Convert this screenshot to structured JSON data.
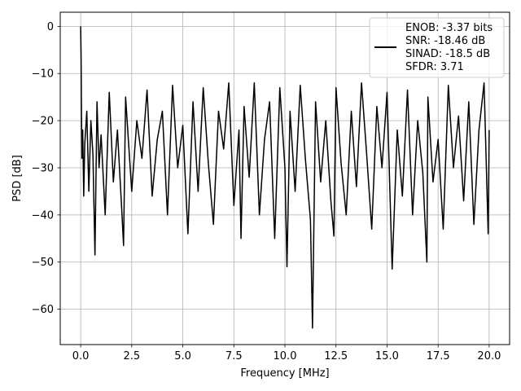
{
  "chart_data": {
    "type": "line",
    "title": "",
    "xlabel": "Frequency [MHz]",
    "ylabel": "PSD [dB]",
    "xlim": [
      -1.0,
      21.0
    ],
    "ylim": [
      -67.5,
      3.0
    ],
    "x_ticks": [
      0.0,
      2.5,
      5.0,
      7.5,
      10.0,
      12.5,
      15.0,
      17.5,
      20.0
    ],
    "x_tick_labels": [
      "0.0",
      "2.5",
      "5.0",
      "7.5",
      "10.0",
      "12.5",
      "15.0",
      "17.5",
      "20.0"
    ],
    "y_ticks": [
      0,
      -10,
      -20,
      -30,
      -40,
      -50,
      -60
    ],
    "y_tick_labels": [
      "0",
      "−10",
      "−20",
      "−30",
      "−40",
      "−50",
      "−60"
    ],
    "grid": true,
    "legend_position": "top-right",
    "series": [
      {
        "color": "#000000",
        "x": [
          0.0,
          0.02,
          0.04,
          0.06,
          0.1,
          0.15,
          0.2,
          0.3,
          0.4,
          0.5,
          0.6,
          0.7,
          0.8,
          0.9,
          1.0,
          1.2,
          1.4,
          1.6,
          1.8,
          2.0,
          2.1,
          2.2,
          2.5,
          2.75,
          3.0,
          3.25,
          3.5,
          3.75,
          4.0,
          4.25,
          4.5,
          4.75,
          5.0,
          5.25,
          5.5,
          5.75,
          6.0,
          6.25,
          6.5,
          6.75,
          7.0,
          7.25,
          7.5,
          7.75,
          7.85,
          8.0,
          8.25,
          8.5,
          8.75,
          9.0,
          9.25,
          9.5,
          9.75,
          10.0,
          10.1,
          10.25,
          10.5,
          10.75,
          11.0,
          11.25,
          11.35,
          11.5,
          11.75,
          12.0,
          12.25,
          12.4,
          12.5,
          12.75,
          13.0,
          13.25,
          13.5,
          13.75,
          14.0,
          14.25,
          14.5,
          14.75,
          15.0,
          15.25,
          15.5,
          15.75,
          16.0,
          16.25,
          16.5,
          16.75,
          16.95,
          17.0,
          17.25,
          17.5,
          17.75,
          18.0,
          18.25,
          18.5,
          18.75,
          19.0,
          19.25,
          19.5,
          19.75,
          19.95,
          20.0
        ],
        "y": [
          0.0,
          -6.0,
          -18.0,
          -28.0,
          -22.0,
          -36.0,
          -25.0,
          -18.0,
          -35.0,
          -20.0,
          -27.0,
          -48.5,
          -16.0,
          -30.0,
          -23.0,
          -40.0,
          -14.0,
          -33.0,
          -22.0,
          -38.0,
          -46.5,
          -15.0,
          -35.0,
          -20.0,
          -28.0,
          -13.5,
          -36.0,
          -24.0,
          -18.0,
          -40.0,
          -12.5,
          -30.0,
          -21.0,
          -44.0,
          -16.0,
          -35.0,
          -13.0,
          -29.0,
          -42.0,
          -18.0,
          -26.0,
          -12.0,
          -38.0,
          -22.0,
          -45.0,
          -17.0,
          -32.0,
          -12.0,
          -40.0,
          -24.0,
          -16.0,
          -45.0,
          -13.0,
          -30.0,
          -51.0,
          -18.0,
          -35.0,
          -12.5,
          -28.0,
          -41.0,
          -64.0,
          -16.0,
          -33.0,
          -20.0,
          -37.0,
          -44.5,
          -13.0,
          -29.0,
          -40.0,
          -18.0,
          -34.0,
          -12.0,
          -27.0,
          -43.0,
          -17.0,
          -30.0,
          -14.0,
          -51.5,
          -22.0,
          -36.0,
          -13.5,
          -40.0,
          -20.0,
          -31.0,
          -50.0,
          -15.0,
          -33.0,
          -24.0,
          -43.0,
          -12.5,
          -30.0,
          -19.0,
          -37.0,
          -16.0,
          -42.0,
          -22.0,
          -12.0,
          -44.0,
          -22.0
        ]
      }
    ],
    "legend": {
      "lines": [
        "ENOB: -3.37 bits",
        "SNR: -18.46 dB",
        "SINAD: -18.5 dB",
        "SFDR: 3.71"
      ]
    }
  }
}
